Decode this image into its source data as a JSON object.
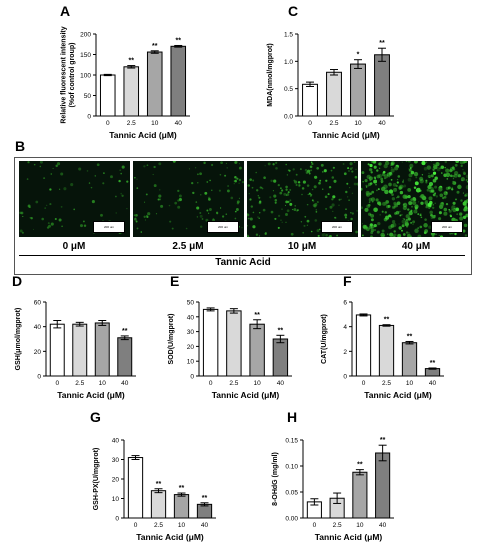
{
  "figure": {
    "panel_B": {
      "letter": "B",
      "labels": [
        "0 μM",
        "2.5 μM",
        "10 μM",
        "40 μM"
      ],
      "axis_label": "Tannic Acid",
      "scale_bar": "200 um"
    }
  },
  "chart_data": [
    {
      "letter": "A",
      "type": "bar",
      "categories": [
        "0",
        "2.5",
        "10",
        "40"
      ],
      "values": [
        100,
        120,
        156,
        170
      ],
      "errors": [
        1.5,
        3,
        3,
        2
      ],
      "sig": [
        "",
        "**",
        "**",
        "**"
      ],
      "ylabel": "Relative fluorescent intensity\n(%of control group)",
      "xlabel": "Tannic Acid (μM)",
      "ylim": [
        0,
        200
      ],
      "yticks": [
        "0",
        "50",
        "100",
        "150",
        "200"
      ],
      "bar_colors": [
        "#ffffff",
        "#d9d9d9",
        "#a6a6a6",
        "#7f7f7f"
      ]
    },
    {
      "letter": "C",
      "type": "bar",
      "categories": [
        "0",
        "2.5",
        "10",
        "40"
      ],
      "values": [
        0.58,
        0.8,
        0.95,
        1.12
      ],
      "errors": [
        0.04,
        0.05,
        0.08,
        0.12
      ],
      "sig": [
        "",
        "",
        "*",
        "**"
      ],
      "ylabel": "MDA(nmol/mgprot)",
      "xlabel": "Tannic Acid (μM)",
      "ylim": [
        0,
        1.5
      ],
      "yticks": [
        "0.0",
        "0.5",
        "1.0",
        "1.5"
      ],
      "bar_colors": [
        "#ffffff",
        "#d9d9d9",
        "#a6a6a6",
        "#7f7f7f"
      ]
    },
    {
      "letter": "D",
      "type": "bar",
      "categories": [
        "0",
        "2.5",
        "10",
        "40"
      ],
      "values": [
        42,
        42,
        43,
        31
      ],
      "errors": [
        3,
        1.5,
        2,
        1.5
      ],
      "sig": [
        "",
        "",
        "",
        "**"
      ],
      "ylabel": "GSH(μmol/mgprot)",
      "xlabel": "Tannic Acid (μM)",
      "ylim": [
        0,
        60
      ],
      "yticks": [
        "0",
        "20",
        "40",
        "60"
      ],
      "bar_colors": [
        "#ffffff",
        "#d9d9d9",
        "#a6a6a6",
        "#7f7f7f"
      ]
    },
    {
      "letter": "E",
      "type": "bar",
      "categories": [
        "0",
        "2.5",
        "10",
        "40"
      ],
      "values": [
        45,
        44,
        35,
        25
      ],
      "errors": [
        1,
        1.5,
        3,
        2.5
      ],
      "sig": [
        "",
        "",
        "**",
        "**"
      ],
      "ylabel": "SOD(U/mgprot)",
      "xlabel": "Tannic Acid (μM)",
      "ylim": [
        0,
        50
      ],
      "yticks": [
        "0",
        "10",
        "20",
        "30",
        "40",
        "50"
      ],
      "bar_colors": [
        "#ffffff",
        "#d9d9d9",
        "#a6a6a6",
        "#7f7f7f"
      ]
    },
    {
      "letter": "F",
      "type": "bar",
      "categories": [
        "0",
        "2.5",
        "10",
        "40"
      ],
      "values": [
        4.95,
        4.1,
        2.7,
        0.6
      ],
      "errors": [
        0.08,
        0.06,
        0.1,
        0.05
      ],
      "sig": [
        "",
        "**",
        "**",
        "**"
      ],
      "ylabel": "CAT(U/mgprot)",
      "xlabel": "Tannic Acid (μM)",
      "ylim": [
        0,
        6
      ],
      "yticks": [
        "0",
        "2",
        "4",
        "6"
      ],
      "bar_colors": [
        "#ffffff",
        "#d9d9d9",
        "#a6a6a6",
        "#7f7f7f"
      ]
    },
    {
      "letter": "G",
      "type": "bar",
      "categories": [
        "0",
        "2.5",
        "10",
        "40"
      ],
      "values": [
        31,
        14,
        12,
        7
      ],
      "errors": [
        1,
        1,
        0.8,
        0.8
      ],
      "sig": [
        "",
        "**",
        "**",
        "**"
      ],
      "ylabel": "GSH-PX(U/mgprot)",
      "xlabel": "Tannic Acid (μM)",
      "ylim": [
        0,
        40
      ],
      "yticks": [
        "0",
        "10",
        "20",
        "30",
        "40"
      ],
      "bar_colors": [
        "#ffffff",
        "#d9d9d9",
        "#a6a6a6",
        "#7f7f7f"
      ]
    },
    {
      "letter": "H",
      "type": "bar",
      "categories": [
        "0",
        "2.5",
        "10",
        "40"
      ],
      "values": [
        0.031,
        0.038,
        0.088,
        0.125
      ],
      "errors": [
        0.006,
        0.01,
        0.005,
        0.015
      ],
      "sig": [
        "",
        "",
        "**",
        "**"
      ],
      "ylabel": "8-OHdG (mg/ml)",
      "xlabel": "Tannic Acid (μM)",
      "ylim": [
        0,
        0.15
      ],
      "yticks": [
        "0.00",
        "0.05",
        "0.10",
        "0.15"
      ],
      "bar_colors": [
        "#ffffff",
        "#d9d9d9",
        "#a6a6a6",
        "#7f7f7f"
      ]
    }
  ]
}
